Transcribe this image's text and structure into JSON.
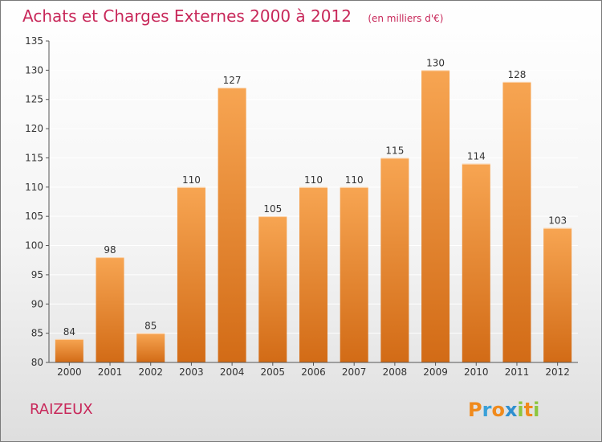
{
  "chart_data": {
    "type": "bar",
    "title": "Achats et Charges Externes 2000 à 2012",
    "subtitle": "(en milliers d'€)",
    "categories": [
      "2000",
      "2001",
      "2002",
      "2003",
      "2004",
      "2005",
      "2006",
      "2007",
      "2008",
      "2009",
      "2010",
      "2011",
      "2012"
    ],
    "values": [
      84,
      98,
      85,
      110,
      127,
      105,
      110,
      110,
      115,
      130,
      114,
      128,
      103
    ],
    "data_labels": [
      "84",
      "98",
      "85",
      "110",
      "127",
      "105",
      "110",
      "110",
      "115",
      "130",
      "114",
      "128",
      "103"
    ],
    "ylim": [
      80,
      135
    ],
    "yticks": [
      80,
      85,
      90,
      95,
      100,
      105,
      110,
      115,
      120,
      125,
      130,
      135
    ],
    "grid": true,
    "colors": {
      "bar_light": "#f7a552",
      "bar_dark": "#d26b16",
      "grid": "#ffffff",
      "title": "#c8285a"
    }
  },
  "place": "RAIZEUX",
  "brand": {
    "name": "Proxiti",
    "letters": [
      "P",
      "r",
      "o",
      "x",
      "i",
      "t",
      "i"
    ],
    "letter_colors": [
      "#f08a1c",
      "#3aa0d8",
      "#f08a1c",
      "#2e8fd0",
      "#8cc63f",
      "#f08a1c",
      "#8cc63f"
    ]
  }
}
